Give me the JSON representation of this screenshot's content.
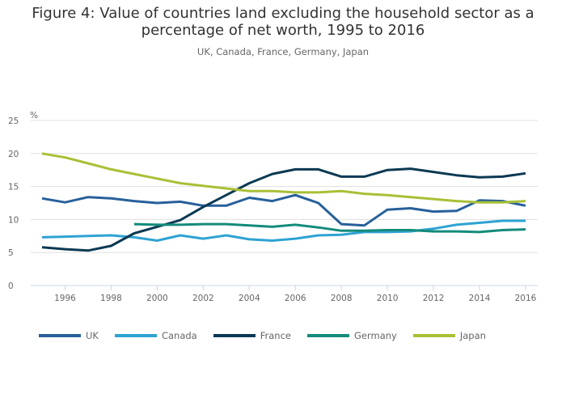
{
  "title_line1": "Figure 4: Value of countries land excluding the household sector as a",
  "title_line2": "percentage of net worth, 1995 to 2016",
  "subtitle": "UK, Canada, France, Germany, Japan",
  "chart_data": {
    "type": "line",
    "title": "Figure 4: Value of countries land excluding the household sector as a percentage of net worth, 1995 to 2016",
    "subtitle": "UK, Canada, France, Germany, Japan",
    "xlabel": "",
    "ylabel": "%",
    "ylim": [
      0,
      25
    ],
    "yticks": [
      0,
      5,
      10,
      15,
      20,
      25
    ],
    "xticks": [
      1996,
      1998,
      2000,
      2002,
      2004,
      2006,
      2008,
      2010,
      2012,
      2014,
      2016
    ],
    "xlim": [
      1995,
      2016
    ],
    "grid": true,
    "legend_position": "bottom-left",
    "x": [
      1995,
      1996,
      1997,
      1998,
      1999,
      2000,
      2001,
      2002,
      2003,
      2004,
      2005,
      2006,
      2007,
      2008,
      2009,
      2010,
      2011,
      2012,
      2013,
      2014,
      2015,
      2016
    ],
    "series": [
      {
        "name": "UK",
        "color": "#27609a",
        "values": [
          13.2,
          12.6,
          13.4,
          13.2,
          12.8,
          12.5,
          12.7,
          12.1,
          12.1,
          13.3,
          12.8,
          13.7,
          12.5,
          9.3,
          9.1,
          11.5,
          11.7,
          11.2,
          11.3,
          12.9,
          12.8,
          12.1
        ]
      },
      {
        "name": "Canada",
        "color": "#2ea3d2",
        "values": [
          7.3,
          7.4,
          7.5,
          7.6,
          7.3,
          6.8,
          7.6,
          7.1,
          7.6,
          7.0,
          6.8,
          7.1,
          7.6,
          7.7,
          8.1,
          8.1,
          8.2,
          8.6,
          9.2,
          9.5,
          9.8,
          9.8
        ]
      },
      {
        "name": "France",
        "color": "#0b3953",
        "values": [
          5.8,
          5.5,
          5.3,
          6.0,
          7.9,
          8.9,
          9.9,
          11.9,
          13.7,
          15.5,
          16.9,
          17.6,
          17.6,
          16.5,
          16.5,
          17.5,
          17.7,
          17.2,
          16.7,
          16.4,
          16.5,
          17.0
        ]
      },
      {
        "name": "Germany",
        "color": "#138b7b",
        "values": [
          null,
          null,
          null,
          null,
          9.3,
          9.2,
          9.2,
          9.3,
          9.3,
          9.1,
          8.9,
          9.2,
          8.8,
          8.3,
          8.3,
          8.4,
          8.4,
          8.2,
          8.2,
          8.1,
          8.4,
          8.5
        ]
      },
      {
        "name": "Japan",
        "color": "#a8c036",
        "values": [
          20.0,
          19.4,
          18.5,
          17.6,
          16.9,
          16.2,
          15.5,
          15.1,
          14.7,
          14.3,
          14.3,
          14.1,
          14.1,
          14.3,
          13.9,
          13.7,
          13.4,
          13.1,
          12.8,
          12.6,
          12.6,
          12.8
        ]
      }
    ]
  }
}
